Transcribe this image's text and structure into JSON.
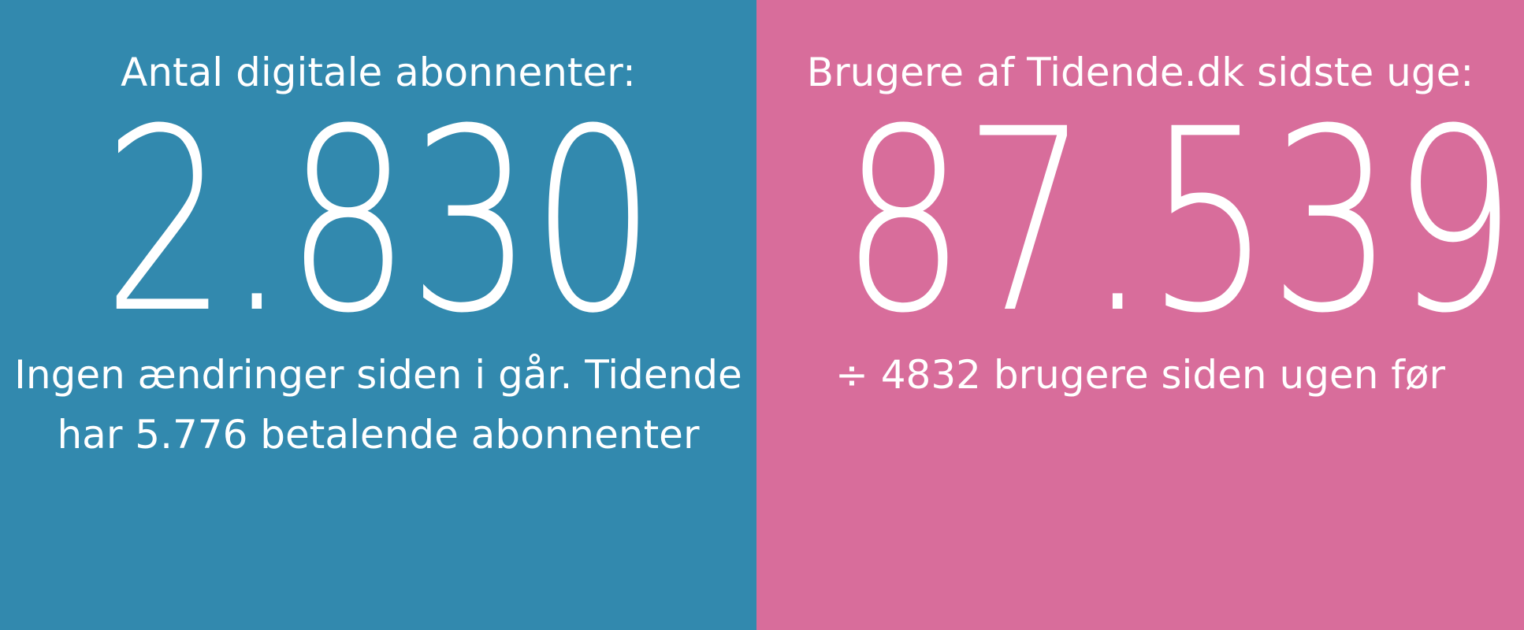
{
  "left_panel": {
    "heading": "Antal digitale abonnenter:",
    "value": "2.830",
    "caption_line1": "Ingen ændringer siden i går. Tidende",
    "caption_line2": "har 5.776 betalende abonnenter",
    "background": "#3289ae"
  },
  "right_panel": {
    "heading": "Brugere af Tidende.dk sidste uge:",
    "value": "87.539",
    "caption_line1": "÷ 4832 brugere siden ugen før",
    "background": "#d86d9b"
  }
}
